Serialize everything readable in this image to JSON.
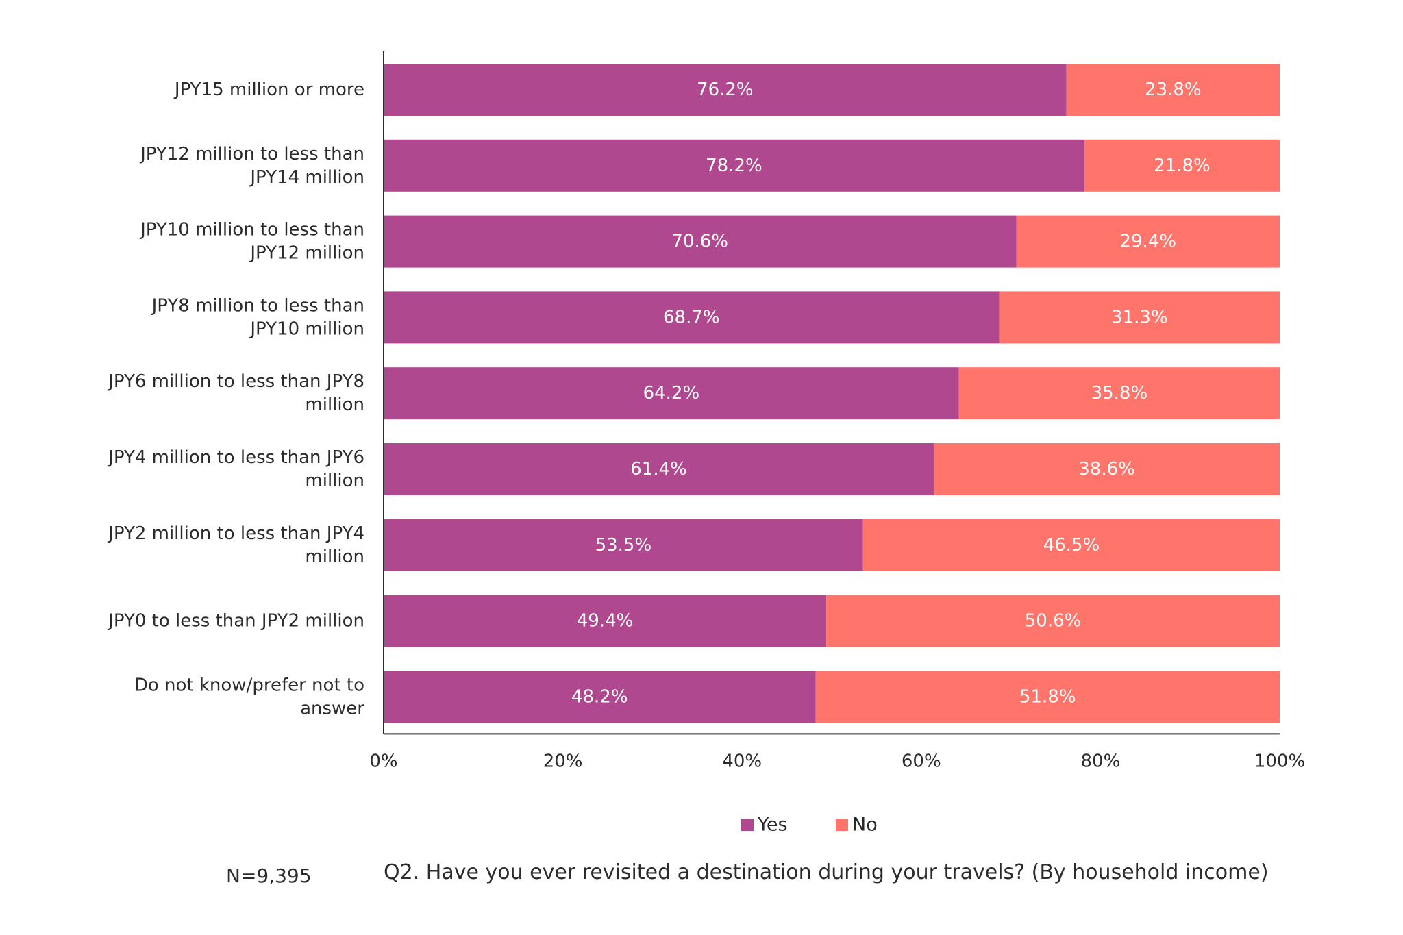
{
  "chart_data": {
    "type": "bar",
    "orientation": "horizontal",
    "stacked": true,
    "categories": [
      [
        "JPY15 million or more"
      ],
      [
        "JPY12 million to less than",
        "JPY14 million"
      ],
      [
        "JPY10 million to less than",
        "JPY12 million"
      ],
      [
        "JPY8 million to less than",
        "JPY10 million"
      ],
      [
        "JPY6 million to less than JPY8",
        "million"
      ],
      [
        "JPY4 million to less than JPY6",
        "million"
      ],
      [
        "JPY2 million to less than JPY4",
        "million"
      ],
      [
        "JPY0 to less than JPY2 million"
      ],
      [
        "Do not know/prefer not to",
        "answer"
      ]
    ],
    "series": [
      {
        "name": "Yes",
        "color": "#b0488f",
        "values": [
          76.2,
          78.2,
          70.6,
          68.7,
          64.2,
          61.4,
          53.5,
          49.4,
          48.2
        ],
        "labels": [
          "76.2%",
          "78.2%",
          "70.6%",
          "68.7%",
          "64.2%",
          "61.4%",
          "53.5%",
          "49.4%",
          "48.2%"
        ]
      },
      {
        "name": "No",
        "color": "#ff756b",
        "values": [
          23.8,
          21.8,
          29.4,
          31.3,
          35.8,
          38.6,
          46.5,
          50.6,
          51.8
        ],
        "labels": [
          "23.8%",
          "21.8%",
          "29.4%",
          "31.3%",
          "35.8%",
          "38.6%",
          "46.5%",
          "50.6%",
          "51.8%"
        ]
      }
    ],
    "xlim": [
      0,
      100
    ],
    "xticks": [
      0,
      20,
      40,
      60,
      80,
      100
    ],
    "xtick_labels": [
      "0%",
      "20%",
      "40%",
      "60%",
      "80%",
      "100%"
    ],
    "grid": false,
    "legend_position": "bottom-center"
  },
  "footer": {
    "sample_size": "N=9,395",
    "question": "Q2. Have you ever revisited a destination during your travels? (By household income)"
  }
}
